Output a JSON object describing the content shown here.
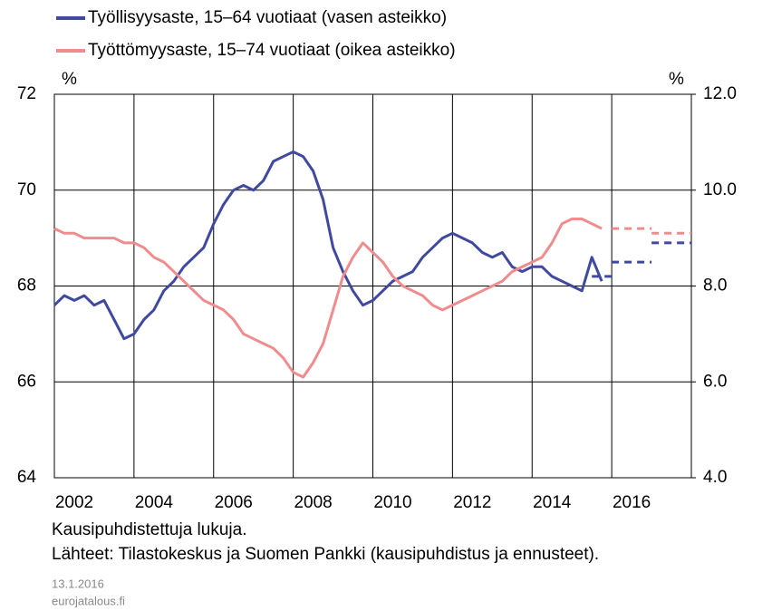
{
  "chart_data": {
    "type": "line",
    "series": [
      {
        "name": "Työllisyysaste, 15–64 vuotiaat (vasen asteikko)",
        "color": "#4049a0",
        "axis": "y",
        "x": [
          2002.0,
          2002.25,
          2002.5,
          2002.75,
          2003.0,
          2003.25,
          2003.5,
          2003.75,
          2004.0,
          2004.25,
          2004.5,
          2004.75,
          2005.0,
          2005.25,
          2005.5,
          2005.75,
          2006.0,
          2006.25,
          2006.5,
          2006.75,
          2007.0,
          2007.25,
          2007.5,
          2007.75,
          2008.0,
          2008.25,
          2008.5,
          2008.75,
          2009.0,
          2009.25,
          2009.5,
          2009.75,
          2010.0,
          2010.25,
          2010.5,
          2010.75,
          2011.0,
          2011.25,
          2011.5,
          2011.75,
          2012.0,
          2012.25,
          2012.5,
          2012.75,
          2013.0,
          2013.25,
          2013.5,
          2013.75,
          2014.0,
          2014.25,
          2014.5,
          2014.75,
          2015.0,
          2015.25,
          2015.5,
          2015.75
        ],
        "values": [
          67.6,
          67.8,
          67.7,
          67.8,
          67.6,
          67.7,
          67.3,
          66.9,
          67.0,
          67.3,
          67.5,
          67.9,
          68.1,
          68.4,
          68.6,
          68.8,
          69.3,
          69.7,
          70.0,
          70.1,
          70.0,
          70.2,
          70.6,
          70.7,
          70.8,
          70.7,
          70.4,
          69.8,
          68.8,
          68.3,
          67.9,
          67.6,
          67.7,
          67.9,
          68.1,
          68.2,
          68.3,
          68.6,
          68.8,
          69.0,
          69.1,
          69.0,
          68.9,
          68.7,
          68.6,
          68.7,
          68.4,
          68.3,
          68.4,
          68.4,
          68.2,
          68.1,
          68.0,
          67.9,
          68.6,
          68.1
        ]
      },
      {
        "name": "Työttömyysaste, 15–74 vuotiaat (oikea asteikko)",
        "color": "#f08c8e",
        "axis": "y2",
        "x": [
          2002.0,
          2002.25,
          2002.5,
          2002.75,
          2003.0,
          2003.25,
          2003.5,
          2003.75,
          2004.0,
          2004.25,
          2004.5,
          2004.75,
          2005.0,
          2005.25,
          2005.5,
          2005.75,
          2006.0,
          2006.25,
          2006.5,
          2006.75,
          2007.0,
          2007.25,
          2007.5,
          2007.75,
          2008.0,
          2008.25,
          2008.5,
          2008.75,
          2009.0,
          2009.25,
          2009.5,
          2009.75,
          2010.0,
          2010.25,
          2010.5,
          2010.75,
          2011.0,
          2011.25,
          2011.5,
          2011.75,
          2012.0,
          2012.25,
          2012.5,
          2012.75,
          2013.0,
          2013.25,
          2013.5,
          2013.75,
          2014.0,
          2014.25,
          2014.5,
          2014.75,
          2015.0,
          2015.25,
          2015.5,
          2015.75
        ],
        "values": [
          9.2,
          9.1,
          9.1,
          9.0,
          9.0,
          9.0,
          9.0,
          8.9,
          8.9,
          8.8,
          8.6,
          8.5,
          8.3,
          8.1,
          7.9,
          7.7,
          7.6,
          7.5,
          7.3,
          7.0,
          6.9,
          6.8,
          6.7,
          6.5,
          6.2,
          6.1,
          6.4,
          6.8,
          7.5,
          8.2,
          8.6,
          8.9,
          8.7,
          8.5,
          8.2,
          8.0,
          7.9,
          7.8,
          7.6,
          7.5,
          7.6,
          7.7,
          7.8,
          7.9,
          8.0,
          8.1,
          8.3,
          8.4,
          8.5,
          8.6,
          8.9,
          9.3,
          9.4,
          9.4,
          9.3,
          9.2
        ]
      },
      {
        "color": "#4049a0",
        "axis": "y",
        "dashed": true,
        "x": [
          2015.5,
          2016,
          null,
          2016,
          2017,
          null,
          2017,
          2018
        ],
        "values": [
          68.2,
          68.2,
          null,
          68.5,
          68.5,
          null,
          68.9,
          68.9
        ]
      },
      {
        "color": "#f08c8e",
        "axis": "y2",
        "dashed": true,
        "x": [
          2016,
          2017,
          null,
          2017,
          2018
        ],
        "values": [
          9.2,
          9.2,
          null,
          9.1,
          9.1
        ]
      }
    ],
    "ylabel": "%",
    "y2label": "%",
    "xlim": [
      2002,
      2018
    ],
    "xticks": [
      2002,
      2004,
      2006,
      2008,
      2010,
      2012,
      2014,
      2016
    ],
    "ylim": [
      64,
      72
    ],
    "yticks": [
      64,
      66,
      68,
      70,
      72
    ],
    "y2lim": [
      4,
      12
    ],
    "y2ticks": [
      {
        "value": 4,
        "label": "4.0"
      },
      {
        "value": 6,
        "label": "6.0"
      },
      {
        "value": 8,
        "label": "8.0"
      },
      {
        "value": 10,
        "label": "10.0"
      },
      {
        "value": 12,
        "label": "12.0"
      }
    ],
    "grid": true,
    "notes": [
      "Kausipuhdistettuja lukuja.",
      "Lähteet:  Tilastokeskus ja Suomen Pankki (kausipuhdistus ja ennusteet)."
    ],
    "date": "13.1.2016",
    "source": "eurojatalous.fi"
  }
}
